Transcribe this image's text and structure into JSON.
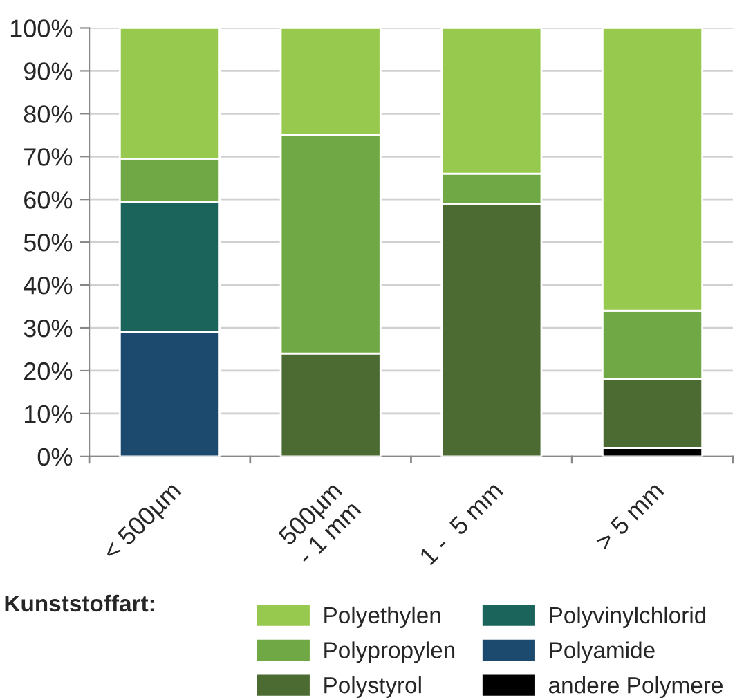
{
  "chart_data": {
    "type": "bar",
    "stacked": true,
    "categories": [
      "< 500µm",
      "500µm\n- 1 mm",
      "1 -  5 mm",
      "> 5 mm"
    ],
    "series": [
      {
        "name": "andere Polymere",
        "color": "#000000",
        "values": [
          0,
          0,
          0,
          2
        ]
      },
      {
        "name": "Polyamide",
        "color": "#1c4a6e",
        "values": [
          29,
          0,
          0,
          0
        ]
      },
      {
        "name": "Polyvinylchlorid",
        "color": "#1a645c",
        "values": [
          30.5,
          0,
          0,
          0
        ]
      },
      {
        "name": "Polystyrol",
        "color": "#4c6b32",
        "values": [
          0,
          24,
          59,
          16
        ]
      },
      {
        "name": "Polypropylen",
        "color": "#6fa845",
        "values": [
          10,
          51,
          7,
          16
        ]
      },
      {
        "name": "Polyethylen",
        "color": "#97c94e",
        "values": [
          30.5,
          25,
          34,
          66
        ]
      }
    ],
    "legend_title": "Kunststoffart:",
    "ylim": [
      0,
      100
    ],
    "yticks": [
      {
        "value": 0,
        "label": "0%"
      },
      {
        "value": 10,
        "label": "10%"
      },
      {
        "value": 20,
        "label": "20%"
      },
      {
        "value": 30,
        "label": "30%"
      },
      {
        "value": 40,
        "label": "40%"
      },
      {
        "value": 50,
        "label": "50%"
      },
      {
        "value": 60,
        "label": "60%"
      },
      {
        "value": 70,
        "label": "70%"
      },
      {
        "value": 80,
        "label": "80%"
      },
      {
        "value": 90,
        "label": "90%"
      },
      {
        "value": 100,
        "label": "100%"
      }
    ],
    "grid": "y",
    "legend": "bottom"
  }
}
